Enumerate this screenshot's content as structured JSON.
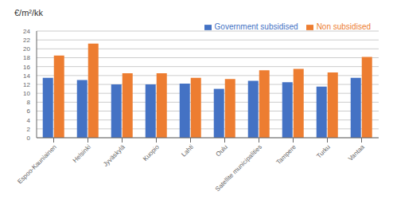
{
  "chart_data": {
    "type": "bar",
    "ylabel": "€/m²/kk",
    "categories": [
      "Espoo-Kauniainen",
      "Helsinki",
      "Jyväskylä",
      "Kuopio",
      "Lahti",
      "Oulu",
      "Satellite municipalities",
      "Tampere",
      "Turku",
      "Vantaa"
    ],
    "series": [
      {
        "name": "Government subsidised",
        "color": "#4472C4",
        "values": [
          13.5,
          13.0,
          12.0,
          12.0,
          12.2,
          11.0,
          12.8,
          12.5,
          11.5,
          13.5
        ]
      },
      {
        "name": "Non subsidised",
        "color": "#ED7D31",
        "values": [
          18.5,
          21.2,
          14.5,
          14.5,
          13.5,
          13.2,
          15.2,
          15.5,
          14.7,
          18.2
        ]
      }
    ],
    "ylim": [
      0,
      24
    ],
    "yticks": [
      0,
      2,
      4,
      6,
      8,
      10,
      12,
      14,
      16,
      18,
      20,
      22,
      24
    ],
    "grid": true,
    "legend": "upper right"
  }
}
